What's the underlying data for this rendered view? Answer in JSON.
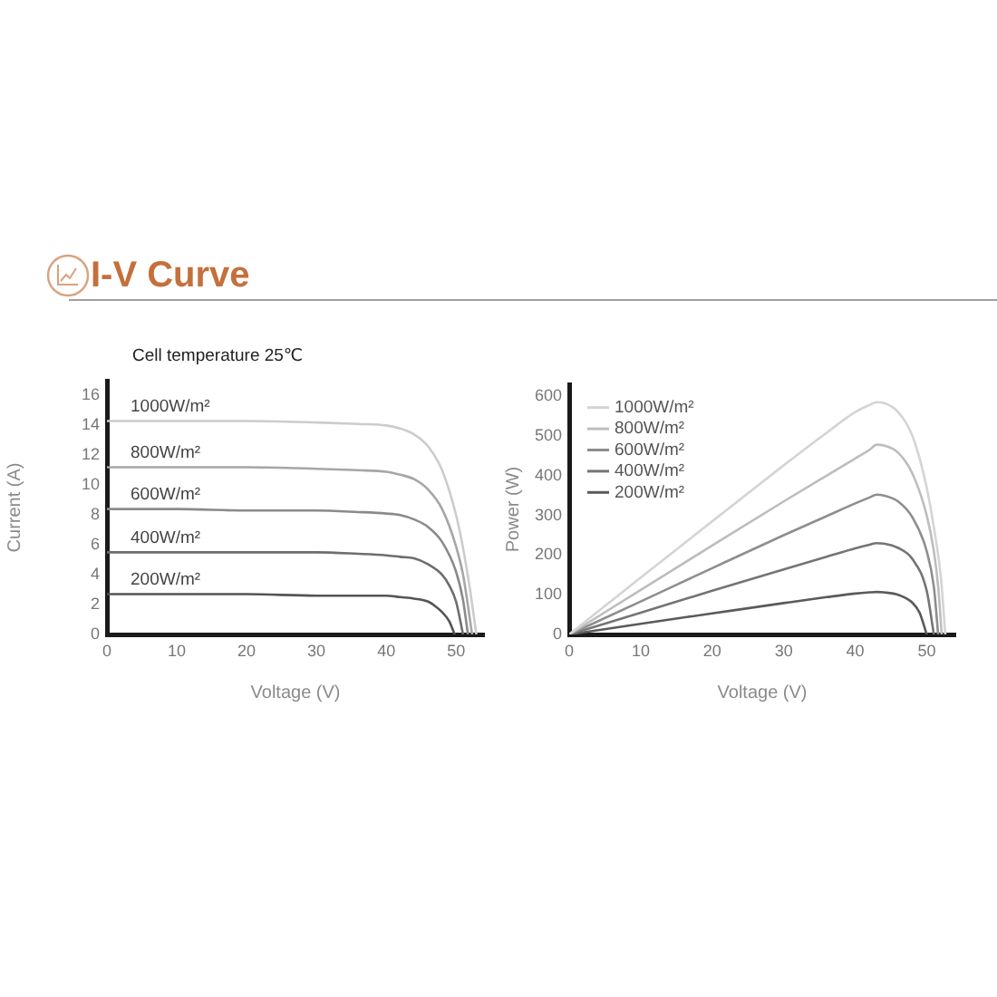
{
  "chart_data": [
    {
      "type": "line",
      "title": "I-V Curve",
      "subtitle": "Cell temperature 25℃",
      "xlabel": "Voltage (V)",
      "ylabel": "Current (A)",
      "xlim": [
        0,
        54
      ],
      "xticks": [
        0,
        10,
        20,
        30,
        40,
        50
      ],
      "ylim": [
        0,
        17
      ],
      "yticks": [
        0,
        2,
        4,
        6,
        8,
        10,
        12,
        14,
        16
      ],
      "grid": false,
      "legend": false,
      "marker": "none",
      "line_style": "solid",
      "series": [
        {
          "name": "1000W/m²",
          "color": "#cccccc",
          "x": [
            0,
            10,
            20,
            30,
            36,
            40,
            42,
            44,
            46,
            48,
            50,
            51,
            52,
            52.9
          ],
          "values": [
            14.3,
            14.3,
            14.3,
            14.2,
            14.1,
            14.0,
            13.8,
            13.4,
            12.6,
            11.0,
            8.0,
            5.8,
            3.0,
            0
          ]
        },
        {
          "name": "800W/m²",
          "color": "#a6a6a6",
          "x": [
            0,
            10,
            20,
            30,
            36,
            40,
            42,
            44,
            46,
            48,
            50,
            51,
            52.3
          ],
          "values": [
            11.2,
            11.2,
            11.2,
            11.1,
            11.0,
            10.9,
            10.7,
            10.4,
            9.7,
            8.4,
            5.9,
            4.0,
            0
          ]
        },
        {
          "name": "600W/m²",
          "color": "#8a8a8a",
          "x": [
            0,
            10,
            20,
            30,
            36,
            40,
            42,
            44,
            46,
            48,
            50,
            51,
            51.7
          ],
          "values": [
            8.4,
            8.4,
            8.3,
            8.3,
            8.2,
            8.1,
            8.0,
            7.7,
            7.2,
            6.2,
            4.2,
            2.3,
            0
          ]
        },
        {
          "name": "400W/m²",
          "color": "#6e6e6e",
          "x": [
            0,
            10,
            20,
            30,
            36,
            40,
            42,
            44,
            46,
            48,
            49,
            50,
            51
          ],
          "values": [
            5.5,
            5.5,
            5.5,
            5.5,
            5.4,
            5.3,
            5.2,
            5.1,
            4.7,
            4.0,
            3.3,
            2.2,
            0
          ]
        },
        {
          "name": "200W/m²",
          "color": "#555555",
          "x": [
            0,
            10,
            20,
            30,
            36,
            40,
            42,
            44,
            46,
            47,
            48,
            49,
            49.8
          ],
          "values": [
            2.7,
            2.7,
            2.7,
            2.6,
            2.6,
            2.6,
            2.5,
            2.4,
            2.2,
            1.9,
            1.5,
            0.9,
            0
          ]
        }
      ]
    },
    {
      "type": "line",
      "xlabel": "Voltage (V)",
      "ylabel": "Power (W)",
      "xlim": [
        0,
        54
      ],
      "xticks": [
        0,
        10,
        20,
        30,
        40,
        50
      ],
      "ylim": [
        0,
        630
      ],
      "yticks": [
        0,
        100,
        200,
        300,
        400,
        500,
        600
      ],
      "grid": false,
      "legend": "top left",
      "marker": "none",
      "line_style": "solid",
      "series": [
        {
          "name": "1000W/m²",
          "color": "#d4d4d4",
          "x": [
            0,
            10,
            20,
            30,
            36,
            40,
            42,
            43,
            44,
            46,
            48,
            50,
            51,
            52,
            52.6
          ],
          "values": [
            0,
            143,
            285,
            426,
            508,
            560,
            578,
            585,
            583,
            560,
            500,
            370,
            270,
            140,
            0
          ]
        },
        {
          "name": "800W/m²",
          "color": "#bdbdbd",
          "x": [
            0,
            10,
            20,
            30,
            36,
            40,
            42,
            43,
            44,
            46,
            48,
            50,
            51,
            51.6,
            52.1
          ],
          "values": [
            0,
            112,
            224,
            335,
            400,
            443,
            465,
            478,
            476,
            458,
            405,
            300,
            210,
            120,
            0
          ]
        },
        {
          "name": "600W/m²",
          "color": "#8e8e8e",
          "x": [
            0,
            10,
            20,
            30,
            36,
            40,
            42,
            43,
            44,
            46,
            48,
            50,
            51,
            51.6
          ],
          "values": [
            0,
            83,
            167,
            250,
            298,
            330,
            345,
            352,
            350,
            335,
            295,
            210,
            120,
            0
          ]
        },
        {
          "name": "400W/m²",
          "color": "#747474",
          "x": [
            0,
            10,
            20,
            30,
            36,
            40,
            42,
            43,
            44,
            46,
            48,
            50,
            51
          ],
          "values": [
            0,
            55,
            110,
            164,
            196,
            217,
            226,
            230,
            229,
            218,
            190,
            110,
            0
          ]
        },
        {
          "name": "200W/m²",
          "color": "#5a5a5a",
          "x": [
            0,
            10,
            20,
            30,
            36,
            40,
            42,
            43,
            44,
            46,
            48,
            49,
            50
          ],
          "values": [
            0,
            27,
            53,
            79,
            94,
            103,
            106,
            107,
            106,
            100,
            80,
            55,
            0
          ]
        }
      ]
    }
  ]
}
